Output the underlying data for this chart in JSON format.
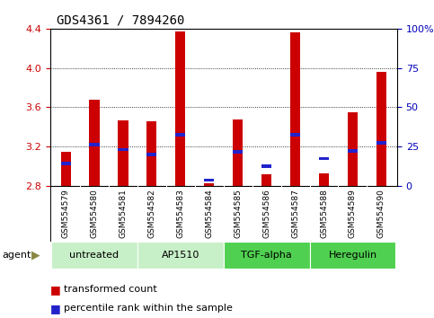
{
  "title": "GDS4361 / 7894260",
  "samples": [
    "GSM554579",
    "GSM554580",
    "GSM554581",
    "GSM554582",
    "GSM554583",
    "GSM554584",
    "GSM554585",
    "GSM554586",
    "GSM554587",
    "GSM554588",
    "GSM554589",
    "GSM554590"
  ],
  "red_values": [
    3.15,
    3.68,
    3.47,
    3.46,
    4.37,
    2.83,
    3.48,
    2.92,
    4.36,
    2.93,
    3.55,
    3.96
  ],
  "blue_values": [
    3.03,
    3.22,
    3.17,
    3.12,
    3.32,
    2.86,
    3.15,
    3.0,
    3.32,
    3.08,
    3.16,
    3.24
  ],
  "ylim_left": [
    2.8,
    4.4
  ],
  "ylim_right": [
    0,
    100
  ],
  "yticks_left": [
    2.8,
    3.2,
    3.6,
    4.0,
    4.4
  ],
  "yticks_right": [
    0,
    25,
    50,
    75,
    100
  ],
  "groups": [
    {
      "label": "untreated",
      "start": 0,
      "end": 3,
      "color": "#C8F0C8"
    },
    {
      "label": "AP1510",
      "start": 3,
      "end": 6,
      "color": "#C8F0C8"
    },
    {
      "label": "TGF-alpha",
      "start": 6,
      "end": 9,
      "color": "#50D050"
    },
    {
      "label": "Heregulin",
      "start": 9,
      "end": 12,
      "color": "#50D050"
    }
  ],
  "agent_label": "agent",
  "legend_red": "transformed count",
  "legend_blue": "percentile rank within the sample",
  "bar_width": 0.35,
  "blue_bar_height": 0.035,
  "red_color": "#CC0000",
  "blue_color": "#2222CC",
  "tick_color_left": "#CC0000",
  "tick_color_right": "#0000BB",
  "background_color": "#FFFFFF",
  "plot_bg_color": "#FFFFFF",
  "label_area_color": "#C8C8C8",
  "title_fontsize": 10,
  "tick_fontsize": 8,
  "sample_fontsize": 6.5,
  "group_fontsize": 8,
  "legend_fontsize": 8
}
